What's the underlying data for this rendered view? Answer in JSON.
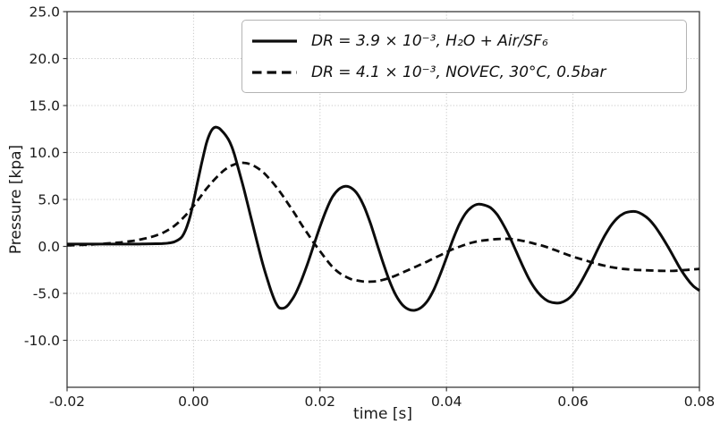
{
  "figure": {
    "background": "#ffffff",
    "grid_color": "#c8c8c8",
    "spine_color": "#3a3a3a",
    "text_color": "#1a1a1a",
    "curve_color": "#0c0c0c"
  },
  "chart_data": {
    "type": "line",
    "title": "",
    "xlabel": "time [s]",
    "ylabel": "Pressure [kpa]",
    "xlim": [
      -0.02,
      0.08
    ],
    "ylim": [
      -15,
      25
    ],
    "xticks": [
      -0.02,
      0.0,
      0.02,
      0.04,
      0.06,
      0.08
    ],
    "xtick_labels": [
      "-0.02",
      "0.00",
      "0.02",
      "0.04",
      "0.06",
      "0.08"
    ],
    "yticks": [
      25,
      20,
      15,
      10,
      5,
      0,
      -5,
      -10
    ],
    "ytick_labels": [
      "25.0",
      "20.0",
      "15.0",
      "10.0",
      "5.0",
      "0.0",
      "-5.0",
      "-10.0"
    ],
    "grid": true,
    "legend_position": "upper right",
    "series": [
      {
        "name": "DR = 3.9 × 10⁻³, H₂O + Air/SF₆",
        "style": "solid",
        "color": "#0c0c0c",
        "points": [
          [
            -0.02,
            0.25
          ],
          [
            -0.016,
            0.25
          ],
          [
            -0.012,
            0.25
          ],
          [
            -0.009,
            0.25
          ],
          [
            -0.007,
            0.28
          ],
          [
            -0.005,
            0.3
          ],
          [
            -0.004,
            0.35
          ],
          [
            -0.003,
            0.5
          ],
          [
            -0.002,
            0.9
          ],
          [
            -0.0015,
            1.4
          ],
          [
            -0.001,
            2.2
          ],
          [
            -0.0005,
            3.3
          ],
          [
            0,
            4.8
          ],
          [
            0.0005,
            6.4
          ],
          [
            0.001,
            8.0
          ],
          [
            0.0015,
            9.5
          ],
          [
            0.002,
            10.9
          ],
          [
            0.0025,
            11.9
          ],
          [
            0.003,
            12.5
          ],
          [
            0.0035,
            12.7
          ],
          [
            0.004,
            12.6
          ],
          [
            0.0045,
            12.3
          ],
          [
            0.005,
            11.9
          ],
          [
            0.0055,
            11.4
          ],
          [
            0.006,
            10.7
          ],
          [
            0.0065,
            9.7
          ],
          [
            0.007,
            8.5
          ],
          [
            0.008,
            6.0
          ],
          [
            0.009,
            3.3
          ],
          [
            0.01,
            0.6
          ],
          [
            0.011,
            -2.0
          ],
          [
            0.012,
            -4.2
          ],
          [
            0.0125,
            -5.2
          ],
          [
            0.013,
            -6.0
          ],
          [
            0.0135,
            -6.5
          ],
          [
            0.014,
            -6.6
          ],
          [
            0.0145,
            -6.5
          ],
          [
            0.015,
            -6.2
          ],
          [
            0.016,
            -5.2
          ],
          [
            0.017,
            -3.7
          ],
          [
            0.018,
            -1.9
          ],
          [
            0.019,
            0.1
          ],
          [
            0.02,
            2.1
          ],
          [
            0.021,
            3.9
          ],
          [
            0.022,
            5.3
          ],
          [
            0.023,
            6.1
          ],
          [
            0.024,
            6.4
          ],
          [
            0.025,
            6.2
          ],
          [
            0.026,
            5.5
          ],
          [
            0.027,
            4.2
          ],
          [
            0.028,
            2.4
          ],
          [
            0.029,
            0.3
          ],
          [
            0.03,
            -1.8
          ],
          [
            0.031,
            -3.7
          ],
          [
            0.032,
            -5.2
          ],
          [
            0.033,
            -6.2
          ],
          [
            0.034,
            -6.7
          ],
          [
            0.035,
            -6.8
          ],
          [
            0.036,
            -6.5
          ],
          [
            0.037,
            -5.8
          ],
          [
            0.038,
            -4.6
          ],
          [
            0.039,
            -3.0
          ],
          [
            0.04,
            -1.2
          ],
          [
            0.041,
            0.7
          ],
          [
            0.042,
            2.3
          ],
          [
            0.043,
            3.5
          ],
          [
            0.044,
            4.2
          ],
          [
            0.045,
            4.5
          ],
          [
            0.046,
            4.4
          ],
          [
            0.047,
            4.1
          ],
          [
            0.048,
            3.4
          ],
          [
            0.049,
            2.3
          ],
          [
            0.05,
            1.0
          ],
          [
            0.051,
            -0.5
          ],
          [
            0.052,
            -2.0
          ],
          [
            0.053,
            -3.4
          ],
          [
            0.054,
            -4.5
          ],
          [
            0.055,
            -5.3
          ],
          [
            0.056,
            -5.8
          ],
          [
            0.057,
            -6.0
          ],
          [
            0.058,
            -6.0
          ],
          [
            0.059,
            -5.7
          ],
          [
            0.06,
            -5.1
          ],
          [
            0.061,
            -4.1
          ],
          [
            0.062,
            -2.9
          ],
          [
            0.063,
            -1.6
          ],
          [
            0.064,
            -0.2
          ],
          [
            0.065,
            1.1
          ],
          [
            0.066,
            2.2
          ],
          [
            0.067,
            3.0
          ],
          [
            0.068,
            3.5
          ],
          [
            0.069,
            3.7
          ],
          [
            0.07,
            3.7
          ],
          [
            0.071,
            3.4
          ],
          [
            0.072,
            2.9
          ],
          [
            0.073,
            2.1
          ],
          [
            0.074,
            1.1
          ],
          [
            0.075,
            0.0
          ],
          [
            0.076,
            -1.2
          ],
          [
            0.077,
            -2.4
          ],
          [
            0.078,
            -3.4
          ],
          [
            0.079,
            -4.2
          ],
          [
            0.08,
            -4.7
          ]
        ]
      },
      {
        "name": "DR = 4.1 × 10⁻³, NOVEC, 30°C, 0.5bar",
        "style": "dashed",
        "color": "#0c0c0c",
        "points": [
          [
            -0.02,
            0.1
          ],
          [
            -0.018,
            0.15
          ],
          [
            -0.016,
            0.2
          ],
          [
            -0.014,
            0.3
          ],
          [
            -0.012,
            0.4
          ],
          [
            -0.01,
            0.55
          ],
          [
            -0.009,
            0.65
          ],
          [
            -0.008,
            0.8
          ],
          [
            -0.007,
            0.95
          ],
          [
            -0.006,
            1.15
          ],
          [
            -0.005,
            1.4
          ],
          [
            -0.004,
            1.75
          ],
          [
            -0.003,
            2.2
          ],
          [
            -0.002,
            2.8
          ],
          [
            -0.001,
            3.5
          ],
          [
            0,
            4.3
          ],
          [
            0.001,
            5.2
          ],
          [
            0.002,
            6.1
          ],
          [
            0.003,
            6.9
          ],
          [
            0.004,
            7.6
          ],
          [
            0.005,
            8.2
          ],
          [
            0.006,
            8.6
          ],
          [
            0.007,
            8.85
          ],
          [
            0.008,
            8.9
          ],
          [
            0.009,
            8.75
          ],
          [
            0.01,
            8.4
          ],
          [
            0.011,
            7.9
          ],
          [
            0.012,
            7.2
          ],
          [
            0.013,
            6.4
          ],
          [
            0.014,
            5.5
          ],
          [
            0.015,
            4.5
          ],
          [
            0.016,
            3.5
          ],
          [
            0.017,
            2.4
          ],
          [
            0.018,
            1.4
          ],
          [
            0.019,
            0.4
          ],
          [
            0.02,
            -0.5
          ],
          [
            0.021,
            -1.4
          ],
          [
            0.022,
            -2.2
          ],
          [
            0.023,
            -2.8
          ],
          [
            0.024,
            -3.2
          ],
          [
            0.025,
            -3.5
          ],
          [
            0.026,
            -3.65
          ],
          [
            0.027,
            -3.75
          ],
          [
            0.028,
            -3.75
          ],
          [
            0.029,
            -3.7
          ],
          [
            0.03,
            -3.55
          ],
          [
            0.031,
            -3.35
          ],
          [
            0.032,
            -3.1
          ],
          [
            0.033,
            -2.8
          ],
          [
            0.034,
            -2.5
          ],
          [
            0.035,
            -2.2
          ],
          [
            0.036,
            -1.9
          ],
          [
            0.037,
            -1.6
          ],
          [
            0.038,
            -1.25
          ],
          [
            0.039,
            -0.95
          ],
          [
            0.04,
            -0.6
          ],
          [
            0.041,
            -0.3
          ],
          [
            0.042,
            -0.05
          ],
          [
            0.043,
            0.2
          ],
          [
            0.044,
            0.4
          ],
          [
            0.045,
            0.55
          ],
          [
            0.046,
            0.65
          ],
          [
            0.047,
            0.72
          ],
          [
            0.048,
            0.78
          ],
          [
            0.049,
            0.8
          ],
          [
            0.05,
            0.8
          ],
          [
            0.051,
            0.72
          ],
          [
            0.052,
            0.6
          ],
          [
            0.053,
            0.45
          ],
          [
            0.054,
            0.28
          ],
          [
            0.055,
            0.1
          ],
          [
            0.056,
            -0.1
          ],
          [
            0.057,
            -0.35
          ],
          [
            0.058,
            -0.6
          ],
          [
            0.059,
            -0.85
          ],
          [
            0.06,
            -1.1
          ],
          [
            0.061,
            -1.3
          ],
          [
            0.062,
            -1.5
          ],
          [
            0.063,
            -1.7
          ],
          [
            0.064,
            -1.9
          ],
          [
            0.065,
            -2.05
          ],
          [
            0.066,
            -2.2
          ],
          [
            0.068,
            -2.4
          ],
          [
            0.07,
            -2.5
          ],
          [
            0.072,
            -2.55
          ],
          [
            0.074,
            -2.6
          ],
          [
            0.076,
            -2.6
          ],
          [
            0.078,
            -2.5
          ],
          [
            0.08,
            -2.4
          ]
        ]
      }
    ]
  }
}
